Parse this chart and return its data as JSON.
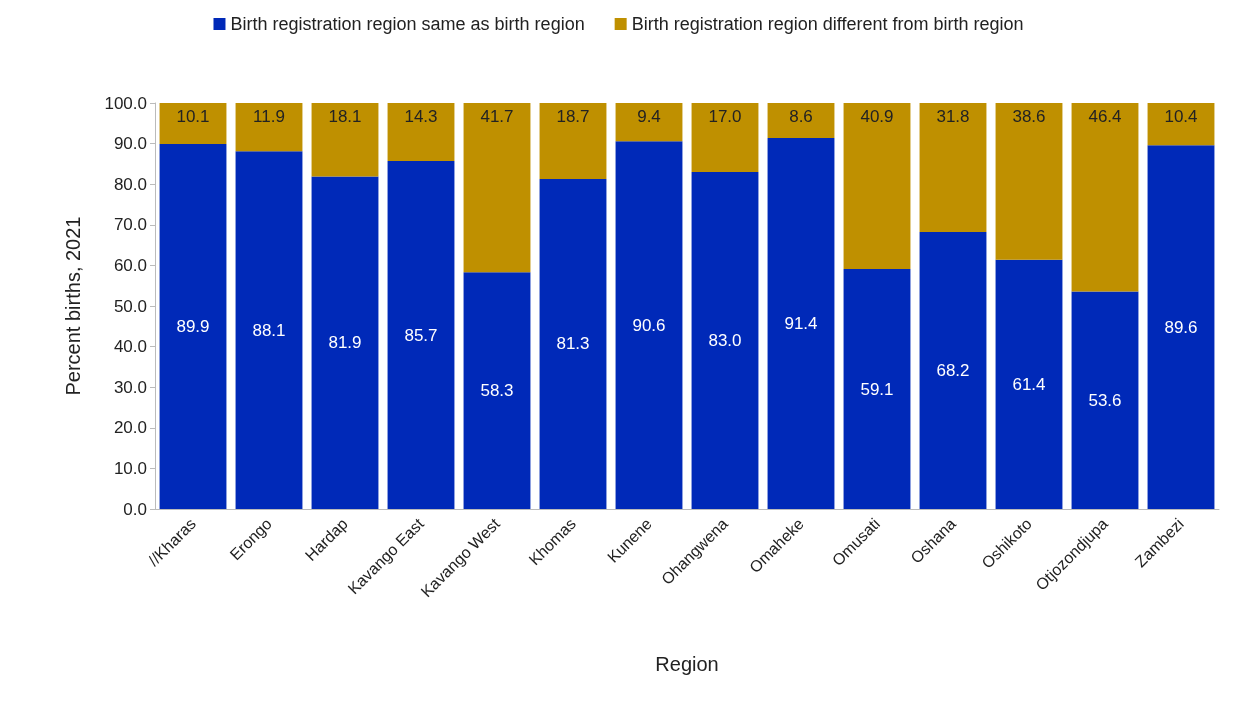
{
  "chart_data": {
    "type": "bar",
    "stacked": true,
    "xlabel": "Region",
    "ylabel": "Percent births, 2021",
    "categories": [
      "//Kharas",
      "Erongo",
      "Hardap",
      "Kavango East",
      "Kavango West",
      "Khomas",
      "Kunene",
      "Ohangwena",
      "Omaheke",
      "Omusati",
      "Oshana",
      "Oshikoto",
      "Otjozondjupa",
      "Zambezi"
    ],
    "series": [
      {
        "name": "Birth registration region same as birth region",
        "color": "#0029b8",
        "values": [
          89.9,
          88.1,
          81.9,
          85.7,
          58.3,
          81.3,
          90.6,
          83.0,
          91.4,
          59.1,
          68.2,
          61.4,
          53.6,
          89.6
        ],
        "value_labels": [
          "89.9",
          "88.1",
          "81.9",
          "85.7",
          "58.3",
          "81.3",
          "90.6",
          "83.0",
          "91.4",
          "59.1",
          "68.2",
          "61.4",
          "53.6",
          "89.6"
        ]
      },
      {
        "name": "Birth registration region different from birth region",
        "color": "#bf9000",
        "values": [
          10.1,
          11.9,
          18.1,
          14.3,
          41.7,
          18.7,
          9.4,
          17.0,
          8.6,
          40.9,
          31.8,
          38.6,
          46.4,
          10.4
        ],
        "value_labels": [
          "10.1",
          "11.9",
          "18.1",
          "14.3",
          "41.7",
          "18.7",
          "9.4",
          "17.0",
          "8.6",
          "40.9",
          "31.8",
          "38.6",
          "46.4",
          "10.4"
        ]
      }
    ],
    "ylim": [
      0,
      100
    ],
    "yticks": [
      {
        "value": 0,
        "label": "0.0"
      },
      {
        "value": 10,
        "label": "10.0"
      },
      {
        "value": 20,
        "label": "20.0"
      },
      {
        "value": 30,
        "label": "30.0"
      },
      {
        "value": 40,
        "label": "40.0"
      },
      {
        "value": 50,
        "label": "50.0"
      },
      {
        "value": 60,
        "label": "60.0"
      },
      {
        "value": 70,
        "label": "70.0"
      },
      {
        "value": 80,
        "label": "80.0"
      },
      {
        "value": 90,
        "label": "90.0"
      },
      {
        "value": 100,
        "label": "100.0"
      }
    ],
    "grid": false,
    "legend": "top"
  }
}
